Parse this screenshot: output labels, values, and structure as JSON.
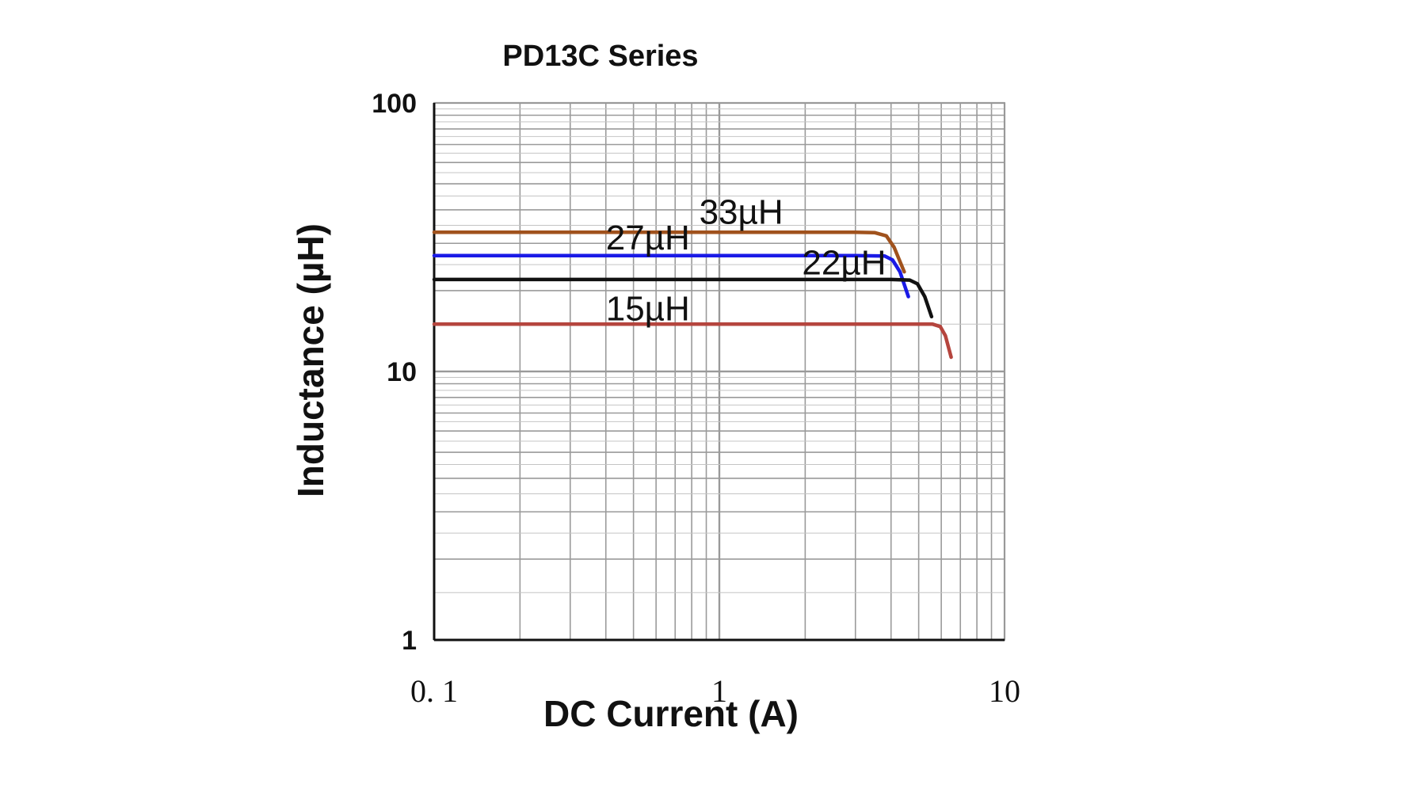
{
  "chart_data": {
    "type": "line",
    "title": "PD13C Series",
    "xlabel": "DC Current (A)",
    "ylabel": "Inductance (µH)",
    "xscale": "log",
    "yscale": "log",
    "xlim": [
      0.1,
      10
    ],
    "ylim": [
      1,
      100
    ],
    "xticks": [
      {
        "value": 0.1,
        "label": "0. 1"
      },
      {
        "value": 1,
        "label": "1"
      },
      {
        "value": 10,
        "label": "10"
      }
    ],
    "yticks": [
      {
        "value": 100,
        "label": "100"
      },
      {
        "value": 10,
        "label": "10"
      },
      {
        "value": 1,
        "label": "1"
      }
    ],
    "grid": true,
    "series": [
      {
        "name": "33µH",
        "color": "#a0521d",
        "x": [
          0.1,
          1,
          3.0,
          3.5,
          3.85,
          4.1,
          4.45
        ],
        "y": [
          33,
          33,
          33,
          32.9,
          32,
          29,
          23.5
        ]
      },
      {
        "name": "27µH",
        "color": "#1a1ae6",
        "x": [
          0.1,
          1,
          3.0,
          3.8,
          4.05,
          4.3,
          4.6
        ],
        "y": [
          27,
          27,
          27,
          26.9,
          26,
          23.5,
          19
        ]
      },
      {
        "name": "22µH",
        "color": "#111111",
        "x": [
          0.1,
          1,
          4.0,
          4.65,
          4.95,
          5.25,
          5.55
        ],
        "y": [
          22,
          22,
          22,
          21.9,
          21.2,
          19,
          16
        ]
      },
      {
        "name": "15µH",
        "color": "#b5453e",
        "x": [
          0.1,
          1,
          5.0,
          5.6,
          5.95,
          6.2,
          6.5
        ],
        "y": [
          15,
          15,
          15,
          15,
          14.7,
          13.6,
          11.3
        ]
      }
    ],
    "series_labels": [
      {
        "text": "33µH",
        "x": 0.85,
        "y": 35.5
      },
      {
        "text": "27µH",
        "x": 0.4,
        "y": 28.5
      },
      {
        "text": "22µH",
        "x": 1.95,
        "y": 23
      },
      {
        "text": "15µH",
        "x": 0.4,
        "y": 15.5
      }
    ]
  }
}
